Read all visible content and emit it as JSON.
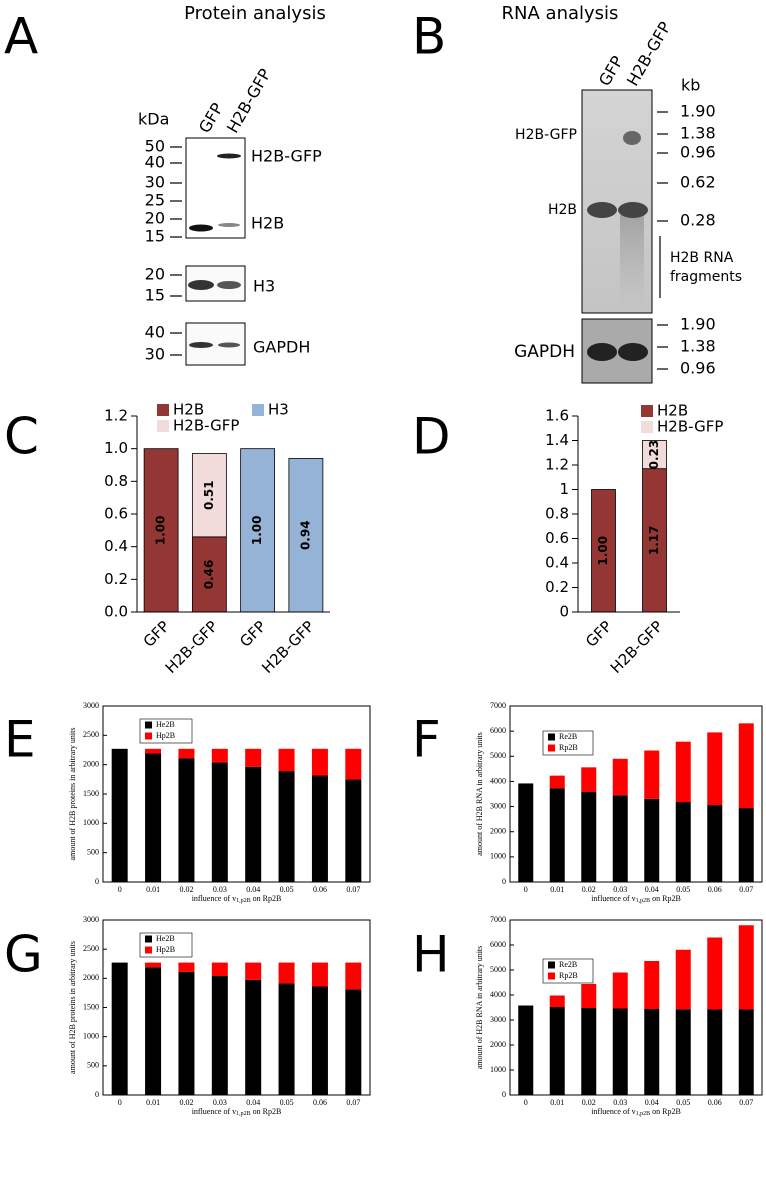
{
  "panel_labels": [
    "A",
    "B",
    "C",
    "D",
    "E",
    "F",
    "G",
    "H"
  ],
  "blots": {
    "protein": {
      "title": "Protein analysis",
      "lanes": [
        "GFP",
        "H2B-GFP"
      ],
      "unit": "kDa",
      "main_markers": [
        "50",
        "40",
        "30",
        "25",
        "20",
        "15"
      ],
      "main_bands": [
        "H2B-GFP",
        "H2B"
      ],
      "h3_markers": [
        "20",
        "15"
      ],
      "h3_label": "H3",
      "gapdh_markers": [
        "40",
        "30"
      ],
      "gapdh_label": "GAPDH"
    },
    "rna": {
      "title": "RNA analysis",
      "lanes": [
        "GFP",
        "H2B-GFP"
      ],
      "unit": "kb",
      "main_markers": [
        "1.90",
        "1.38",
        "0.96",
        "0.62",
        "0.28"
      ],
      "main_bands": [
        "H2B-GFP",
        "H2B"
      ],
      "fragments_label": [
        "H2B RNA",
        "fragments"
      ],
      "gapdh_markers": [
        "1.90",
        "1.38",
        "0.96"
      ],
      "gapdh_label": "GAPDH"
    }
  },
  "chart_data": [
    {
      "type": "bar",
      "stacked": true,
      "categories": [
        "GFP",
        "H2B-GFP",
        "GFP",
        "H2B-GFP"
      ],
      "series": [
        {
          "name": "H2B",
          "color": "#943634",
          "values": [
            1.0,
            0.46,
            null,
            null
          ],
          "value_labels": [
            "1.00",
            "0.46",
            null,
            null
          ]
        },
        {
          "name": "H2B-GFP",
          "color": "#f2dcdb",
          "values": [
            null,
            0.51,
            null,
            null
          ],
          "value_labels": [
            null,
            "0.51",
            null,
            null
          ]
        },
        {
          "name": "H3",
          "color": "#95b3d7",
          "values": [
            null,
            null,
            1.0,
            0.94
          ],
          "value_labels": [
            null,
            null,
            "1.00",
            "0.94"
          ]
        }
      ],
      "ylim": [
        0,
        1.2
      ],
      "yticks": [
        {
          "value": 0,
          "label": "0.0"
        },
        0.2,
        0.4,
        0.6,
        0.8,
        {
          "value": 1,
          "label": "1.0"
        },
        1.2
      ]
    },
    {
      "type": "bar",
      "stacked": true,
      "categories": [
        "GFP",
        "H2B-GFP"
      ],
      "series": [
        {
          "name": "H2B",
          "color": "#943634",
          "values": [
            1.0,
            1.17
          ],
          "value_labels": [
            "1.00",
            "1.17"
          ]
        },
        {
          "name": "H2B-GFP",
          "color": "#f2dcdb",
          "values": [
            null,
            0.23
          ],
          "value_labels": [
            null,
            "0.23"
          ]
        }
      ],
      "ylim": [
        0,
        1.6
      ],
      "yticks": [
        0,
        0.2,
        0.4,
        0.6,
        0.8,
        1,
        1.2,
        1.4,
        1.6
      ]
    },
    {
      "type": "bar",
      "stacked": true,
      "categories": [
        "0",
        "0.01",
        "0.02",
        "0.03",
        "0.04",
        "0.05",
        "0.06",
        "0.07"
      ],
      "series": [
        {
          "name": "He2B",
          "color": "#000000",
          "values": [
            2270,
            2190,
            2110,
            2040,
            1965,
            1890,
            1815,
            1750
          ]
        },
        {
          "name": "Hp2B",
          "color": "#ff0000",
          "values": [
            0,
            80,
            160,
            230,
            305,
            380,
            455,
            520
          ]
        }
      ],
      "ylim": [
        0,
        3000
      ],
      "yticks": [
        0,
        500,
        1000,
        1500,
        2000,
        2500,
        3000
      ],
      "ylabel": "amount of H2B proteins in arbitrary units",
      "xlabel": {
        "text": "influence of v",
        "sub": "1,p2B",
        "tail": " on Rp2B"
      }
    },
    {
      "type": "bar",
      "stacked": true,
      "categories": [
        "0",
        "0.01",
        "0.02",
        "0.03",
        "0.04",
        "0.05",
        "0.06",
        "0.07"
      ],
      "series": [
        {
          "name": "Re2B",
          "color": "#000000",
          "values": [
            3920,
            3730,
            3580,
            3450,
            3310,
            3180,
            3060,
            2940
          ]
        },
        {
          "name": "Rp2B",
          "color": "#ff0000",
          "values": [
            0,
            500,
            980,
            1450,
            1920,
            2400,
            2890,
            3370
          ]
        }
      ],
      "ylim": [
        0,
        7000
      ],
      "yticks": [
        0,
        1000,
        2000,
        3000,
        4000,
        5000,
        6000,
        7000
      ],
      "ylabel": "amount of H2B RNA in arbitrary units",
      "xlabel": {
        "text": "influence of v",
        "sub": "1,p2B",
        "tail": " on Rp2B"
      }
    },
    {
      "type": "bar",
      "stacked": true,
      "categories": [
        "0",
        "0.01",
        "0.02",
        "0.03",
        "0.04",
        "0.05",
        "0.06",
        "0.07"
      ],
      "series": [
        {
          "name": "He2B",
          "color": "#000000",
          "values": [
            2270,
            2190,
            2110,
            2040,
            1975,
            1915,
            1860,
            1810
          ]
        },
        {
          "name": "Hp2B",
          "color": "#ff0000",
          "values": [
            0,
            80,
            160,
            230,
            295,
            355,
            410,
            460
          ]
        }
      ],
      "ylim": [
        0,
        3000
      ],
      "yticks": [
        0,
        500,
        1000,
        1500,
        2000,
        2500,
        3000
      ],
      "ylabel": "amount of H2B proteins in arbitrary units",
      "xlabel": {
        "text": "influence of v",
        "sub": "1,p2B",
        "tail": " on Rp2B"
      }
    },
    {
      "type": "bar",
      "stacked": true,
      "categories": [
        "0",
        "0.01",
        "0.02",
        "0.03",
        "0.04",
        "0.05",
        "0.06",
        "0.07"
      ],
      "series": [
        {
          "name": "Re2B",
          "color": "#000000",
          "values": [
            3580,
            3520,
            3480,
            3460,
            3440,
            3430,
            3420,
            3420
          ]
        },
        {
          "name": "Rp2B",
          "color": "#ff0000",
          "values": [
            0,
            460,
            960,
            1440,
            1920,
            2380,
            2880,
            3370
          ]
        }
      ],
      "ylim": [
        0,
        7000
      ],
      "yticks": [
        0,
        1000,
        2000,
        3000,
        4000,
        5000,
        6000,
        7000
      ],
      "ylabel": "amount of H2B RNA in arbitrary units",
      "xlabel": {
        "text": "influence of v",
        "sub": "1,p2B",
        "tail": " on Rp2B"
      }
    }
  ]
}
